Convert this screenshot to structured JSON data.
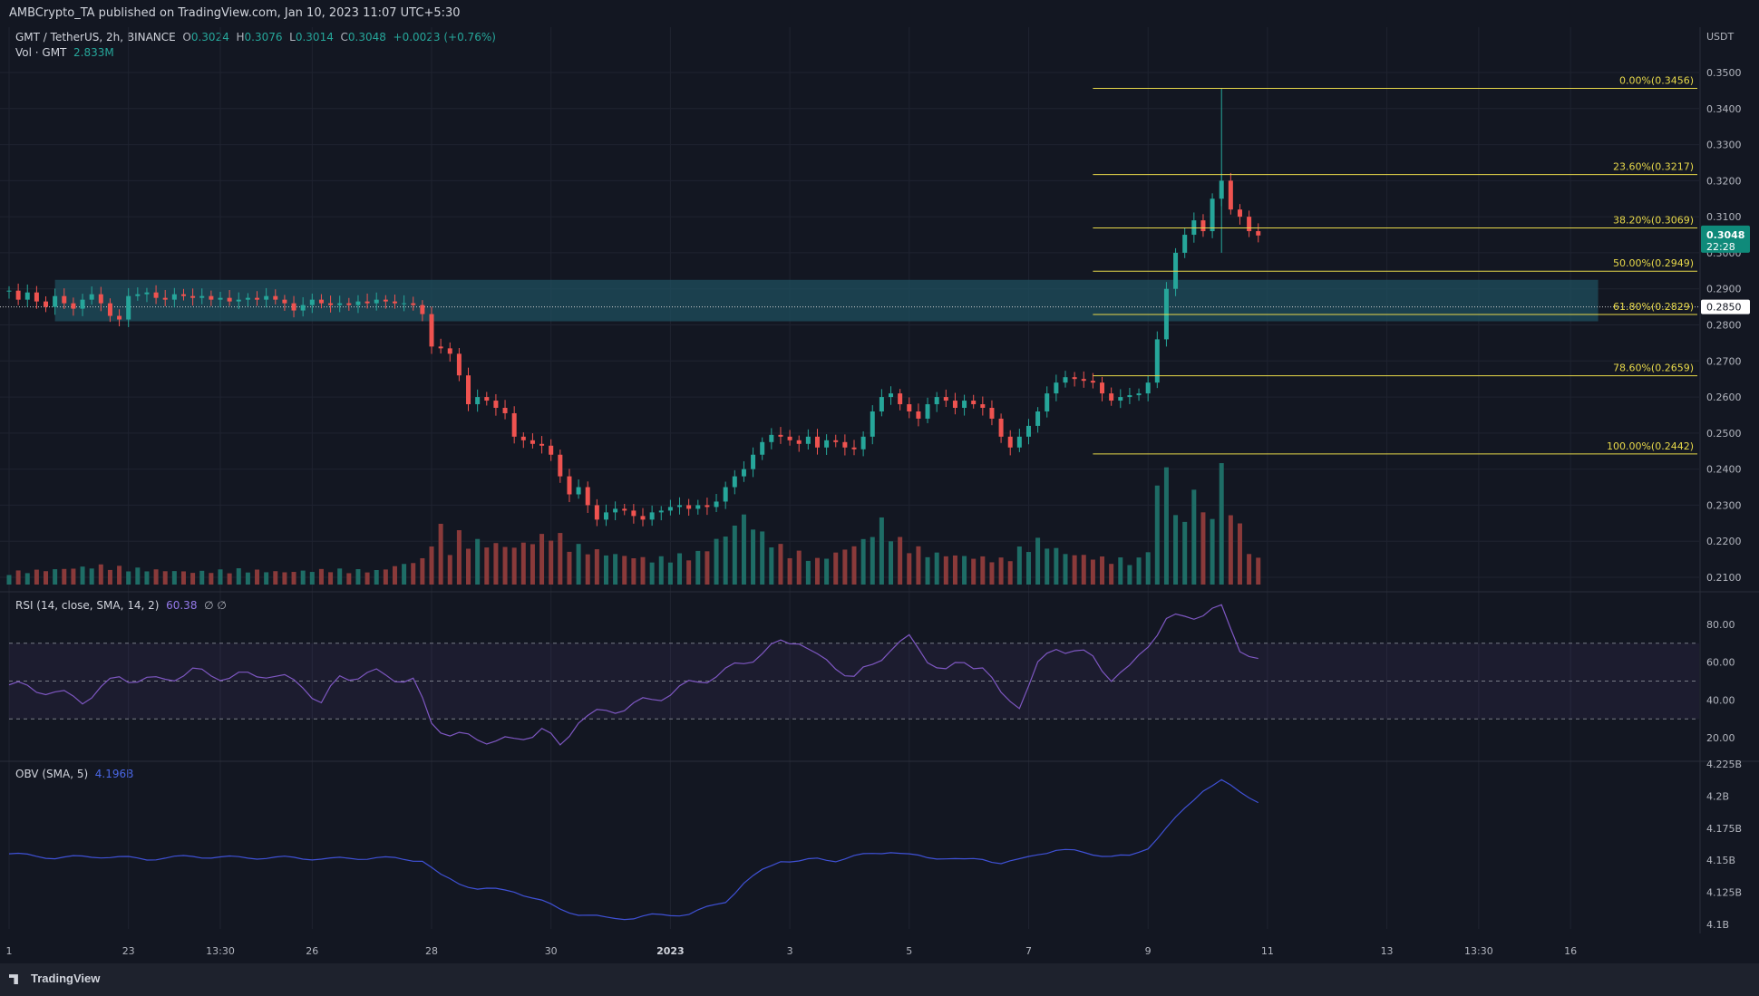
{
  "header": {
    "published": "AMBCrypto_TA published on TradingView.com, Jan 10, 2023 11:07 UTC+5:30"
  },
  "legend": {
    "symbol": "GMT / TetherUS, 2h, BINANCE",
    "o_label": "O",
    "o_value": "0.3024",
    "h_label": "H",
    "h_value": "0.3076",
    "l_label": "L",
    "l_value": "0.3014",
    "c_label": "C",
    "c_value": "0.3048",
    "change": "+0.0023 (+0.76%)",
    "vol_label": "Vol · GMT",
    "vol_value": "2.833M",
    "rsi_label": "RSI (14, close, SMA, 14, 2)",
    "rsi_value": "60.38",
    "rsi_extra": "∅ ∅",
    "obv_label": "OBV (SMA, 5)",
    "obv_value": "4.196B"
  },
  "colors": {
    "up": "#26a69a",
    "down": "#ef5350",
    "fib": "#e8d94a",
    "zone": "#1f4f5e",
    "rsi": "#7e57c2",
    "obv": "#3f51d6",
    "bg": "#131722"
  },
  "footer": {
    "brand": "TradingView"
  },
  "chart_data": {
    "type": "candlestick",
    "price_axis": {
      "currency": "USDT",
      "ticks": [
        "0.3500",
        "0.3400",
        "0.3300",
        "0.3200",
        "0.3100",
        "0.3000",
        "0.2900",
        "0.2800",
        "0.2700",
        "0.2600",
        "0.2500",
        "0.2400",
        "0.2300",
        "0.2200",
        "0.2100"
      ],
      "current_price": "0.3048",
      "countdown": "22:28",
      "marked_price": "0.2850"
    },
    "x_ticks": [
      {
        "label": "1",
        "t": 0
      },
      {
        "label": "23",
        "t": 13
      },
      {
        "label": "13:30",
        "t": 23
      },
      {
        "label": "26",
        "t": 33
      },
      {
        "label": "28",
        "t": 46
      },
      {
        "label": "30",
        "t": 59
      },
      {
        "label": "2023",
        "t": 72
      },
      {
        "label": "3",
        "t": 85
      },
      {
        "label": "5",
        "t": 98
      },
      {
        "label": "7",
        "t": 111
      },
      {
        "label": "9",
        "t": 124
      },
      {
        "label": "11",
        "t": 137
      },
      {
        "label": "13",
        "t": 150
      },
      {
        "label": "13:30",
        "t": 160
      },
      {
        "label": "16",
        "t": 170
      }
    ],
    "fib_levels": [
      {
        "label": "0.00%(0.3456)",
        "value": 0.3456
      },
      {
        "label": "23.60%(0.3217)",
        "value": 0.3217
      },
      {
        "label": "38.20%(0.3069)",
        "value": 0.3069
      },
      {
        "label": "50.00%(0.2949)",
        "value": 0.2949
      },
      {
        "label": "61.80%(0.2829)",
        "value": 0.2829
      },
      {
        "label": "78.60%(0.2659)",
        "value": 0.2659
      },
      {
        "label": "100.00%(0.2442)",
        "value": 0.2442
      }
    ],
    "demand_zone": {
      "low": 0.281,
      "high": 0.2925
    },
    "close_points": [
      [
        0,
        0.2895
      ],
      [
        1,
        0.287
      ],
      [
        2,
        0.289
      ],
      [
        3,
        0.2865
      ],
      [
        4,
        0.285
      ],
      [
        5,
        0.288
      ],
      [
        6,
        0.286
      ],
      [
        7,
        0.2845
      ],
      [
        8,
        0.287
      ],
      [
        9,
        0.2885
      ],
      [
        10,
        0.286
      ],
      [
        11,
        0.2825
      ],
      [
        12,
        0.2815
      ],
      [
        13,
        0.288
      ],
      [
        14,
        0.2885
      ],
      [
        15,
        0.289
      ],
      [
        16,
        0.2875
      ],
      [
        17,
        0.287
      ],
      [
        18,
        0.2885
      ],
      [
        19,
        0.288
      ],
      [
        20,
        0.2875
      ],
      [
        21,
        0.288
      ],
      [
        22,
        0.287
      ],
      [
        23,
        0.2875
      ],
      [
        24,
        0.2865
      ],
      [
        25,
        0.287
      ],
      [
        26,
        0.2875
      ],
      [
        27,
        0.287
      ],
      [
        28,
        0.288
      ],
      [
        29,
        0.287
      ],
      [
        30,
        0.286
      ],
      [
        31,
        0.284
      ],
      [
        32,
        0.2855
      ],
      [
        33,
        0.287
      ],
      [
        34,
        0.286
      ],
      [
        35,
        0.2855
      ],
      [
        36,
        0.286
      ],
      [
        37,
        0.2855
      ],
      [
        38,
        0.2865
      ],
      [
        39,
        0.286
      ],
      [
        40,
        0.287
      ],
      [
        41,
        0.2865
      ],
      [
        42,
        0.286
      ],
      [
        43,
        0.286
      ],
      [
        44,
        0.2855
      ],
      [
        45,
        0.283
      ],
      [
        46,
        0.274
      ],
      [
        47,
        0.2735
      ],
      [
        48,
        0.272
      ],
      [
        49,
        0.266
      ],
      [
        50,
        0.258
      ],
      [
        51,
        0.26
      ],
      [
        52,
        0.259
      ],
      [
        53,
        0.257
      ],
      [
        54,
        0.2555
      ],
      [
        55,
        0.249
      ],
      [
        56,
        0.248
      ],
      [
        57,
        0.247
      ],
      [
        58,
        0.2465
      ],
      [
        59,
        0.244
      ],
      [
        60,
        0.238
      ],
      [
        61,
        0.233
      ],
      [
        62,
        0.235
      ],
      [
        63,
        0.23
      ],
      [
        64,
        0.226
      ],
      [
        65,
        0.228
      ],
      [
        66,
        0.229
      ],
      [
        67,
        0.2285
      ],
      [
        68,
        0.227
      ],
      [
        69,
        0.226
      ],
      [
        70,
        0.228
      ],
      [
        71,
        0.2285
      ],
      [
        72,
        0.2295
      ],
      [
        73,
        0.23
      ],
      [
        74,
        0.229
      ],
      [
        75,
        0.23
      ],
      [
        76,
        0.2295
      ],
      [
        77,
        0.231
      ],
      [
        78,
        0.235
      ],
      [
        79,
        0.238
      ],
      [
        80,
        0.24
      ],
      [
        81,
        0.244
      ],
      [
        82,
        0.2475
      ],
      [
        83,
        0.2495
      ],
      [
        84,
        0.249
      ],
      [
        85,
        0.248
      ],
      [
        86,
        0.247
      ],
      [
        87,
        0.249
      ],
      [
        88,
        0.246
      ],
      [
        89,
        0.248
      ],
      [
        90,
        0.2475
      ],
      [
        91,
        0.246
      ],
      [
        92,
        0.2455
      ],
      [
        93,
        0.249
      ],
      [
        94,
        0.256
      ],
      [
        95,
        0.26
      ],
      [
        96,
        0.261
      ],
      [
        97,
        0.258
      ],
      [
        98,
        0.256
      ],
      [
        99,
        0.254
      ],
      [
        100,
        0.258
      ],
      [
        101,
        0.26
      ],
      [
        102,
        0.259
      ],
      [
        103,
        0.257
      ],
      [
        104,
        0.259
      ],
      [
        105,
        0.258
      ],
      [
        106,
        0.257
      ],
      [
        107,
        0.254
      ],
      [
        108,
        0.249
      ],
      [
        109,
        0.246
      ],
      [
        110,
        0.249
      ],
      [
        111,
        0.252
      ],
      [
        112,
        0.256
      ],
      [
        113,
        0.261
      ],
      [
        114,
        0.264
      ],
      [
        115,
        0.2655
      ],
      [
        116,
        0.265
      ],
      [
        117,
        0.2645
      ],
      [
        118,
        0.264
      ],
      [
        119,
        0.261
      ],
      [
        120,
        0.259
      ],
      [
        121,
        0.26
      ],
      [
        122,
        0.2605
      ],
      [
        123,
        0.261
      ],
      [
        124,
        0.264
      ],
      [
        125,
        0.276
      ],
      [
        126,
        0.29
      ],
      [
        127,
        0.3
      ],
      [
        128,
        0.305
      ],
      [
        129,
        0.309
      ],
      [
        130,
        0.306
      ],
      [
        131,
        0.315
      ],
      [
        132,
        0.32
      ],
      [
        133,
        0.312
      ],
      [
        134,
        0.31
      ],
      [
        135,
        0.306
      ],
      [
        136,
        0.3048
      ]
    ],
    "volume_points": [
      [
        0,
        0.1
      ],
      [
        5,
        0.12
      ],
      [
        10,
        0.15
      ],
      [
        15,
        0.12
      ],
      [
        20,
        0.1
      ],
      [
        25,
        0.12
      ],
      [
        30,
        0.1
      ],
      [
        35,
        0.12
      ],
      [
        40,
        0.11
      ],
      [
        45,
        0.2
      ],
      [
        46,
        0.35
      ],
      [
        47,
        0.45
      ],
      [
        48,
        0.3
      ],
      [
        49,
        0.4
      ],
      [
        50,
        0.35
      ],
      [
        55,
        0.3
      ],
      [
        58,
        0.38
      ],
      [
        59,
        0.42
      ],
      [
        60,
        0.38
      ],
      [
        62,
        0.3
      ],
      [
        65,
        0.25
      ],
      [
        70,
        0.2
      ],
      [
        75,
        0.25
      ],
      [
        78,
        0.4
      ],
      [
        80,
        0.55
      ],
      [
        82,
        0.4
      ],
      [
        84,
        0.3
      ],
      [
        88,
        0.2
      ],
      [
        90,
        0.25
      ],
      [
        93,
        0.35
      ],
      [
        95,
        0.5
      ],
      [
        97,
        0.35
      ],
      [
        100,
        0.25
      ],
      [
        105,
        0.22
      ],
      [
        108,
        0.2
      ],
      [
        110,
        0.28
      ],
      [
        112,
        0.35
      ],
      [
        115,
        0.25
      ],
      [
        120,
        0.2
      ],
      [
        123,
        0.2
      ],
      [
        124,
        0.3
      ],
      [
        125,
        0.75
      ],
      [
        126,
        1.0
      ],
      [
        127,
        0.55
      ],
      [
        128,
        0.5
      ],
      [
        129,
        0.8
      ],
      [
        130,
        0.55
      ],
      [
        131,
        0.6
      ],
      [
        132,
        0.9
      ],
      [
        133,
        0.7
      ],
      [
        134,
        0.45
      ],
      [
        135,
        0.3
      ],
      [
        136,
        0.2
      ]
    ],
    "rsi": {
      "ticks": [
        "80.00",
        "60.00",
        "40.00",
        "20.00"
      ],
      "points": [
        [
          0,
          48
        ],
        [
          4,
          45
        ],
        [
          8,
          40
        ],
        [
          12,
          52
        ],
        [
          16,
          50
        ],
        [
          20,
          55
        ],
        [
          24,
          52
        ],
        [
          28,
          54
        ],
        [
          32,
          48
        ],
        [
          34,
          38
        ],
        [
          36,
          52
        ],
        [
          40,
          54
        ],
        [
          44,
          50
        ],
        [
          46,
          28
        ],
        [
          48,
          22
        ],
        [
          50,
          20
        ],
        [
          55,
          18
        ],
        [
          58,
          25
        ],
        [
          60,
          15
        ],
        [
          62,
          30
        ],
        [
          66,
          35
        ],
        [
          70,
          40
        ],
        [
          74,
          48
        ],
        [
          78,
          55
        ],
        [
          82,
          65
        ],
        [
          84,
          70
        ],
        [
          86,
          72
        ],
        [
          88,
          62
        ],
        [
          90,
          58
        ],
        [
          92,
          52
        ],
        [
          94,
          58
        ],
        [
          96,
          68
        ],
        [
          98,
          72
        ],
        [
          100,
          62
        ],
        [
          102,
          55
        ],
        [
          104,
          60
        ],
        [
          106,
          58
        ],
        [
          108,
          42
        ],
        [
          110,
          38
        ],
        [
          112,
          58
        ],
        [
          114,
          68
        ],
        [
          116,
          66
        ],
        [
          118,
          62
        ],
        [
          120,
          52
        ],
        [
          122,
          56
        ],
        [
          124,
          70
        ],
        [
          126,
          82
        ],
        [
          128,
          84
        ],
        [
          130,
          86
        ],
        [
          132,
          88
        ],
        [
          134,
          68
        ],
        [
          136,
          60
        ]
      ]
    },
    "obv": {
      "ticks": [
        "4.225B",
        "4.2B",
        "4.175B",
        "4.15B",
        "4.125B",
        "4.1B"
      ],
      "points": [
        [
          0,
          4.155
        ],
        [
          5,
          4.152
        ],
        [
          10,
          4.153
        ],
        [
          15,
          4.151
        ],
        [
          20,
          4.153
        ],
        [
          25,
          4.152
        ],
        [
          30,
          4.152
        ],
        [
          35,
          4.151
        ],
        [
          40,
          4.152
        ],
        [
          45,
          4.15
        ],
        [
          47,
          4.138
        ],
        [
          49,
          4.132
        ],
        [
          51,
          4.128
        ],
        [
          55,
          4.126
        ],
        [
          58,
          4.118
        ],
        [
          60,
          4.112
        ],
        [
          62,
          4.108
        ],
        [
          65,
          4.105
        ],
        [
          68,
          4.105
        ],
        [
          70,
          4.107
        ],
        [
          74,
          4.108
        ],
        [
          78,
          4.118
        ],
        [
          80,
          4.132
        ],
        [
          82,
          4.142
        ],
        [
          84,
          4.15
        ],
        [
          86,
          4.149
        ],
        [
          88,
          4.151
        ],
        [
          90,
          4.15
        ],
        [
          92,
          4.153
        ],
        [
          94,
          4.155
        ],
        [
          96,
          4.157
        ],
        [
          98,
          4.154
        ],
        [
          100,
          4.152
        ],
        [
          102,
          4.152
        ],
        [
          104,
          4.15
        ],
        [
          106,
          4.151
        ],
        [
          108,
          4.148
        ],
        [
          110,
          4.15
        ],
        [
          112,
          4.155
        ],
        [
          114,
          4.158
        ],
        [
          116,
          4.157
        ],
        [
          118,
          4.155
        ],
        [
          120,
          4.153
        ],
        [
          122,
          4.153
        ],
        [
          124,
          4.16
        ],
        [
          126,
          4.175
        ],
        [
          128,
          4.19
        ],
        [
          130,
          4.205
        ],
        [
          132,
          4.212
        ],
        [
          134,
          4.203
        ],
        [
          136,
          4.196
        ]
      ]
    }
  }
}
